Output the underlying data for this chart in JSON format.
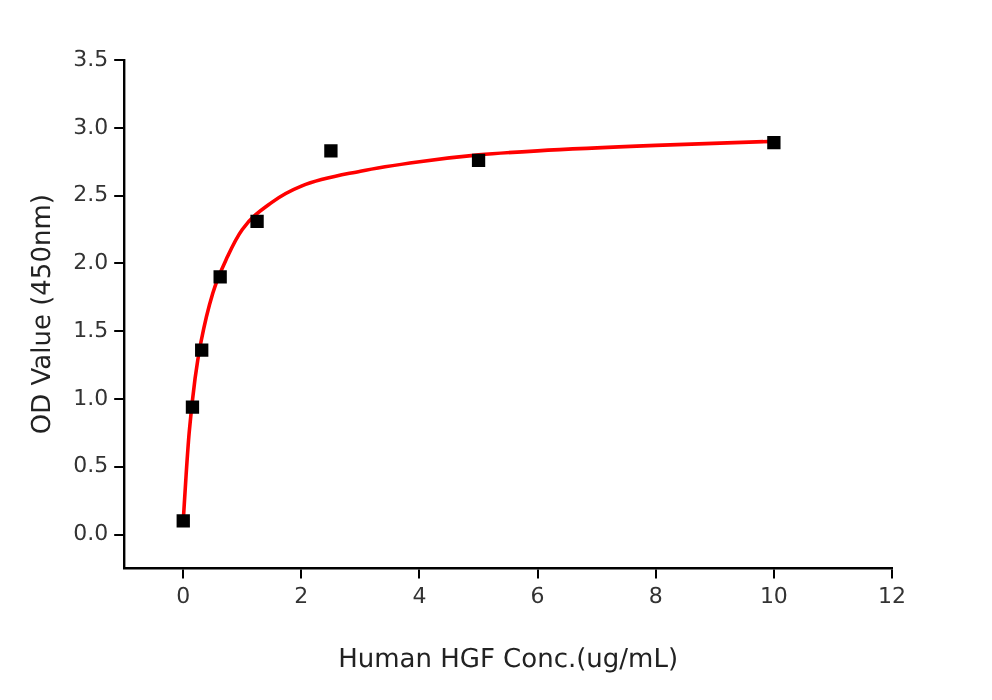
{
  "chart_data": {
    "type": "scatter",
    "xlabel": "Human HGF Conc.(ug/mL)",
    "ylabel": "OD Value (450nm)",
    "xlim": [
      -1,
      12
    ],
    "xticks": [
      0,
      2,
      4,
      6,
      8,
      10,
      12
    ],
    "ylim": [
      -0.25,
      3.5
    ],
    "yticks": [
      {
        "value": 0,
        "label": "0.0"
      },
      0.5,
      {
        "value": 1,
        "label": "1.0"
      },
      1.5,
      {
        "value": 2,
        "label": "2.0"
      },
      2.5,
      {
        "value": 3,
        "label": "3.0"
      },
      3.5
    ],
    "grid": false,
    "legend": false,
    "series": [
      {
        "type": "scatter",
        "color": "#000000",
        "marker": "square",
        "x": [
          0,
          0.156,
          0.3125,
          0.625,
          1.25,
          2.5,
          5,
          10
        ],
        "values": [
          0.1,
          0.94,
          1.36,
          1.9,
          2.31,
          2.83,
          2.76,
          2.89
        ]
      },
      {
        "type": "line",
        "color": "#ff0000",
        "marker": "none",
        "line_style": "solid",
        "x": [
          0,
          0.05,
          0.1,
          0.2,
          0.3,
          0.5,
          0.75,
          1,
          1.5,
          2,
          3,
          4,
          5,
          6,
          8,
          10
        ],
        "values": [
          0.1,
          0.45,
          0.75,
          1.15,
          1.42,
          1.78,
          2.05,
          2.25,
          2.45,
          2.57,
          2.68,
          2.75,
          2.8,
          2.83,
          2.87,
          2.9
        ]
      }
    ]
  }
}
